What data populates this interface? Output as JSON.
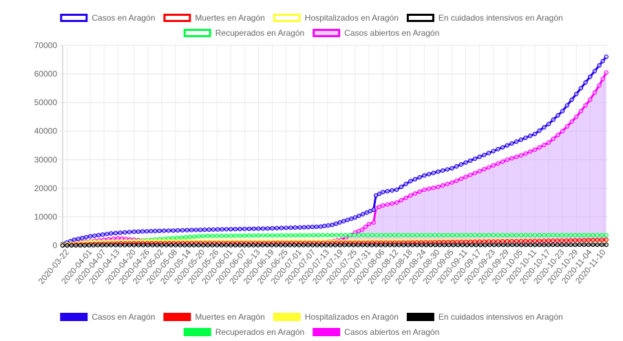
{
  "chart_data": {
    "type": "line",
    "xlabel": "",
    "ylabel": "",
    "ylim": [
      0,
      70000
    ],
    "y_ticks": [
      0,
      10000,
      20000,
      30000,
      40000,
      50000,
      60000,
      70000
    ],
    "grid": true,
    "legend_position": "top",
    "x_tick_labels": [
      "2020-03-22",
      "2020-04-01",
      "2020-04-07",
      "2020-04-13",
      "2020-04-20",
      "2020-04-26",
      "2020-05-02",
      "2020-05-08",
      "2020-05-14",
      "2020-05-20",
      "2020-05-26",
      "2020-06-01",
      "2020-06-07",
      "2020-06-13",
      "2020-06-19",
      "2020-06-25",
      "2020-07-01",
      "2020-07-07",
      "2020-07-13",
      "2020-07-19",
      "2020-07-25",
      "2020-07-31",
      "2020-08-06",
      "2020-08-12",
      "2020-08-18",
      "2020-08-24",
      "2020-08-30",
      "2020-09-05",
      "2020-09-11",
      "2020-09-17",
      "2020-09-23",
      "2020-09-29",
      "2020-10-05",
      "2020-10-11",
      "2020-10-17",
      "2020-10-23",
      "2020-10-29",
      "2020-11-04",
      "2020-11-10"
    ],
    "x_range": [
      "2020-03-20",
      "2020-11-12"
    ],
    "series": [
      {
        "name": "Casos en Aragón",
        "color": "#2200ee",
        "fill": false,
        "x": [
          "2020-03-20",
          "2020-03-25",
          "2020-04-01",
          "2020-04-10",
          "2020-04-20",
          "2020-05-01",
          "2020-05-15",
          "2020-06-01",
          "2020-06-15",
          "2020-07-01",
          "2020-07-10",
          "2020-07-15",
          "2020-07-20",
          "2020-07-25",
          "2020-07-30",
          "2020-08-02",
          "2020-08-03",
          "2020-08-06",
          "2020-08-12",
          "2020-08-18",
          "2020-08-24",
          "2020-08-30",
          "2020-09-05",
          "2020-09-11",
          "2020-09-17",
          "2020-09-23",
          "2020-09-29",
          "2020-10-05",
          "2020-10-11",
          "2020-10-17",
          "2020-10-23",
          "2020-10-29",
          "2020-11-04",
          "2020-11-08",
          "2020-11-11"
        ],
        "y": [
          500,
          2000,
          3200,
          4200,
          4800,
          5100,
          5400,
          5700,
          5900,
          6300,
          6600,
          7200,
          8500,
          9800,
          11500,
          12500,
          17500,
          18700,
          19500,
          22500,
          24500,
          25800,
          27000,
          29000,
          31000,
          33000,
          35000,
          37000,
          39000,
          42500,
          47000,
          53000,
          59000,
          63000,
          66000
        ]
      },
      {
        "name": "Muertes en Aragón",
        "color": "#ff0000",
        "fill": false,
        "x": [
          "2020-03-20",
          "2020-04-01",
          "2020-04-20",
          "2020-05-15",
          "2020-07-15",
          "2020-08-15",
          "2020-09-15",
          "2020-10-15",
          "2020-11-11"
        ],
        "y": [
          0,
          500,
          800,
          850,
          900,
          1000,
          1300,
          1600,
          2000
        ]
      },
      {
        "name": "Hospitalizados en Aragón",
        "color": "#ffff33",
        "fill": false,
        "x": [
          "2020-03-20",
          "2020-04-01",
          "2020-04-20",
          "2020-05-15",
          "2020-07-15",
          "2020-08-15",
          "2020-09-15",
          "2020-10-15",
          "2020-11-11"
        ],
        "y": [
          300,
          1300,
          1500,
          1500,
          1500,
          1600,
          1600,
          1700,
          1800
        ]
      },
      {
        "name": "En cuidados intensivos en Aragón",
        "color": "#000000",
        "fill": false,
        "x": [
          "2020-03-20",
          "2020-04-10",
          "2020-06-01",
          "2020-08-15",
          "2020-10-15",
          "2020-11-11"
        ],
        "y": [
          0,
          120,
          100,
          150,
          200,
          250
        ]
      },
      {
        "name": "Recuperados en Aragón",
        "color": "#00ff44",
        "fill": false,
        "x": [
          "2020-03-20",
          "2020-04-10",
          "2020-05-01",
          "2020-05-20",
          "2020-06-15",
          "2020-07-15",
          "2020-08-15",
          "2020-09-15",
          "2020-10-15",
          "2020-11-11"
        ],
        "y": [
          0,
          800,
          2200,
          3300,
          3500,
          3600,
          3600,
          3600,
          3600,
          3600
        ]
      },
      {
        "name": "Casos abiertos en Aragón",
        "color": "#ff00ff",
        "fill": true,
        "fill_color": "rgba(204,153,255,0.45)",
        "x": [
          "2020-03-20",
          "2020-04-01",
          "2020-04-13",
          "2020-04-20",
          "2020-05-01",
          "2020-05-15",
          "2020-06-01",
          "2020-06-20",
          "2020-07-10",
          "2020-07-19",
          "2020-07-25",
          "2020-07-28",
          "2020-07-31",
          "2020-08-02",
          "2020-08-03",
          "2020-08-06",
          "2020-08-12",
          "2020-08-18",
          "2020-08-24",
          "2020-08-30",
          "2020-09-05",
          "2020-09-11",
          "2020-09-17",
          "2020-09-23",
          "2020-09-29",
          "2020-10-05",
          "2020-10-11",
          "2020-10-17",
          "2020-10-23",
          "2020-10-29",
          "2020-11-04",
          "2020-11-08",
          "2020-11-11"
        ],
        "y": [
          400,
          1500,
          2500,
          2000,
          1200,
          800,
          600,
          500,
          1000,
          2000,
          4500,
          5500,
          7500,
          8000,
          13000,
          14000,
          15000,
          17500,
          19500,
          20500,
          22000,
          24000,
          26000,
          28000,
          30000,
          31500,
          33500,
          36000,
          40000,
          45000,
          51000,
          56000,
          60500
        ]
      }
    ]
  }
}
